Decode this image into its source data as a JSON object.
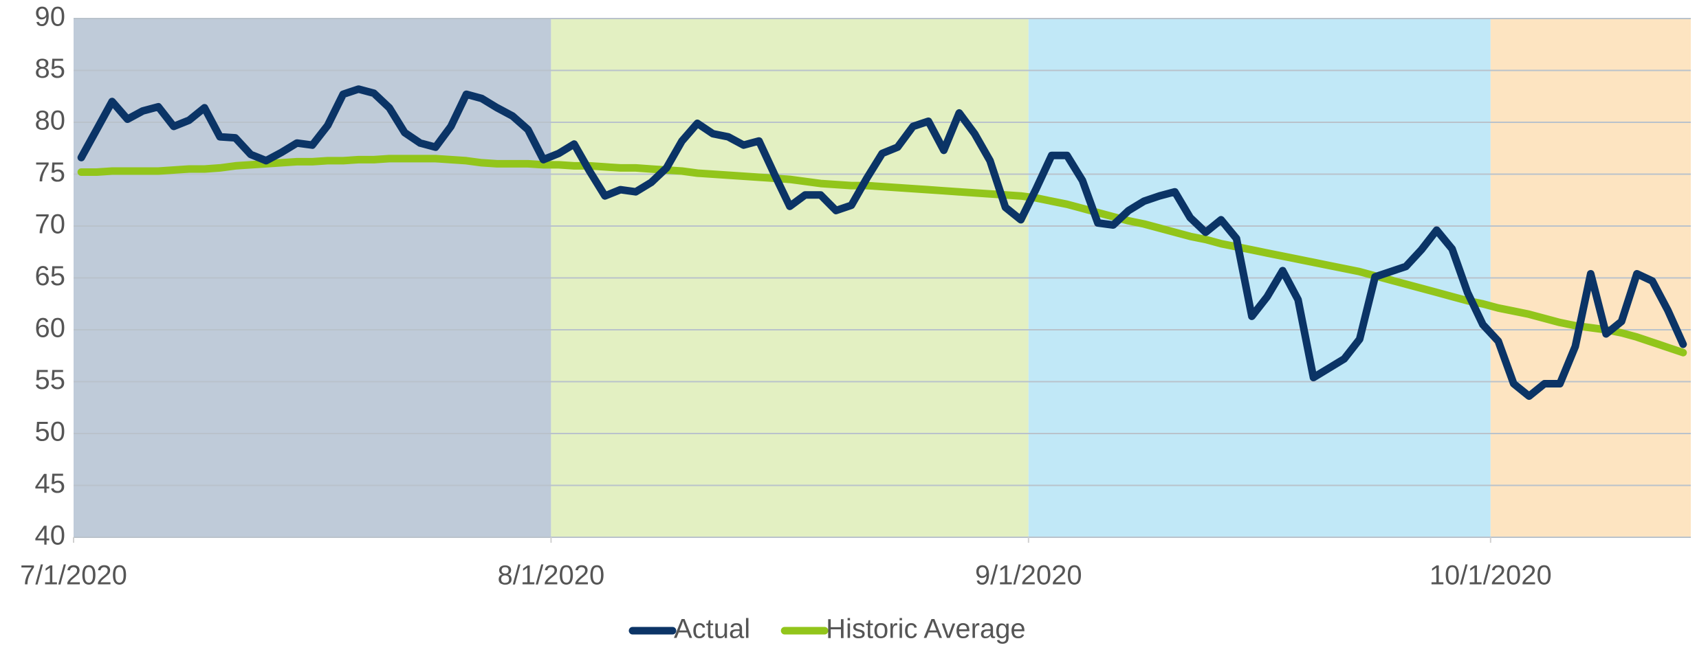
{
  "chart_data": {
    "type": "line",
    "x": [
      0.5,
      1.5,
      2.5,
      3.5,
      4.5,
      5.5,
      6.5,
      7.5,
      8.5,
      9.5,
      10.5,
      11.5,
      12.5,
      13.5,
      14.5,
      15.5,
      16.5,
      17.5,
      18.5,
      19.5,
      20.5,
      21.5,
      22.5,
      23.5,
      24.5,
      25.5,
      26.5,
      27.5,
      28.5,
      29.5,
      30.5,
      31.5,
      32.5,
      33.5,
      34.5,
      35.5,
      36.5,
      37.5,
      38.5,
      39.5,
      40.5,
      41.5,
      42.5,
      43.5,
      44.5,
      45.5,
      46.5,
      47.5,
      48.5,
      49.5,
      50.5,
      51.5,
      52.5,
      53.5,
      54.5,
      55.5,
      56.5,
      57.5,
      58.5,
      59.5,
      60.5,
      61.5,
      62.5,
      63.5,
      64.5,
      65.5,
      66.5,
      67.5,
      68.5,
      69.5,
      70.5,
      71.5,
      72.5,
      73.5,
      74.5,
      75.5,
      76.5,
      77.5,
      78.5,
      79.5,
      80.5,
      81.5,
      82.5,
      83.5,
      84.5,
      85.5,
      86.5,
      87.5,
      88.5,
      89.5,
      90.5,
      91.5,
      92.5,
      93.5,
      94.5,
      95.5,
      96.5,
      97.5,
      98.5,
      99.5,
      100.5,
      101.5,
      102.5,
      103.5,
      104.5
    ],
    "series": [
      {
        "name": "Actual",
        "color": "#0b3466",
        "values": [
          76.6,
          79.3,
          82,
          80.3,
          81.1,
          81.5,
          79.6,
          80.2,
          81.4,
          78.6,
          78.5,
          76.9,
          76.3,
          77.1,
          78,
          77.8,
          79.7,
          82.7,
          83.2,
          82.8,
          81.4,
          79,
          78,
          77.6,
          79.6,
          82.7,
          82.3,
          81.4,
          80.6,
          79.3,
          76.4,
          77,
          77.9,
          75.3,
          72.9,
          73.5,
          73.3,
          74.2,
          75.6,
          78.2,
          79.9,
          78.9,
          78.6,
          77.8,
          78.2,
          75,
          71.9,
          73,
          73,
          71.5,
          72,
          74.6,
          77,
          77.6,
          79.6,
          80.1,
          77.3,
          80.9,
          78.9,
          76.3,
          71.8,
          70.6,
          73.6,
          76.8,
          76.8,
          74.4,
          70.3,
          70.1,
          71.5,
          72.4,
          72.9,
          73.3,
          70.8,
          69.4,
          70.6,
          68.8,
          61.3,
          63.2,
          65.7,
          62.9,
          55.4,
          56.3,
          57.2,
          59.1,
          65.1,
          65.6,
          66.1,
          67.7,
          69.6,
          67.8,
          63.6,
          60.5,
          58.9,
          54.8,
          53.6,
          54.8,
          54.8,
          58.4,
          65.4,
          59.6,
          60.8,
          65.4,
          64.7,
          61.9,
          58.6
        ]
      },
      {
        "name": "Historic Average",
        "color": "#92c51b",
        "values": [
          75.2,
          75.2,
          75.3,
          75.3,
          75.3,
          75.3,
          75.4,
          75.5,
          75.5,
          75.6,
          75.8,
          75.9,
          76.0,
          76.1,
          76.2,
          76.2,
          76.3,
          76.3,
          76.4,
          76.4,
          76.5,
          76.5,
          76.5,
          76.5,
          76.4,
          76.3,
          76.1,
          76.0,
          76.0,
          76.0,
          75.9,
          75.9,
          75.8,
          75.8,
          75.7,
          75.6,
          75.6,
          75.5,
          75.4,
          75.3,
          75.1,
          75.0,
          74.9,
          74.8,
          74.7,
          74.6,
          74.5,
          74.3,
          74.1,
          74.0,
          73.9,
          73.9,
          73.8,
          73.7,
          73.6,
          73.5,
          73.4,
          73.3,
          73.2,
          73.1,
          73.0,
          72.9,
          72.7,
          72.4,
          72.1,
          71.7,
          71.3,
          70.9,
          70.5,
          70.2,
          69.8,
          69.4,
          69.0,
          68.7,
          68.3,
          68.0,
          67.7,
          67.4,
          67.1,
          66.8,
          66.5,
          66.2,
          65.9,
          65.6,
          65.2,
          64.8,
          64.4,
          64.0,
          63.6,
          63.2,
          62.8,
          62.5,
          62.1,
          61.8,
          61.5,
          61.1,
          60.7,
          60.4,
          60.2,
          60.0,
          59.7,
          59.3,
          58.8,
          58.3,
          57.8
        ]
      }
    ],
    "xlim": [
      0,
      105
    ],
    "xticks": [
      {
        "value": 0,
        "label": "7/1/2020"
      },
      {
        "value": 31,
        "label": "8/1/2020"
      },
      {
        "value": 62,
        "label": "9/1/2020"
      },
      {
        "value": 92,
        "label": "10/1/2020"
      }
    ],
    "ylim": [
      40,
      90
    ],
    "yticks": [
      40,
      45,
      50,
      55,
      60,
      65,
      70,
      75,
      80,
      85,
      90
    ],
    "regions": [
      {
        "from": 0,
        "to": 31,
        "color": "#bfcbd9"
      },
      {
        "from": 31,
        "to": 62,
        "color": "#e3f0c2"
      },
      {
        "from": 62,
        "to": 92,
        "color": "#c1e8f7"
      },
      {
        "from": 92,
        "to": 105,
        "color": "#fde4c1"
      }
    ],
    "grid": true,
    "legend": "bottom"
  }
}
